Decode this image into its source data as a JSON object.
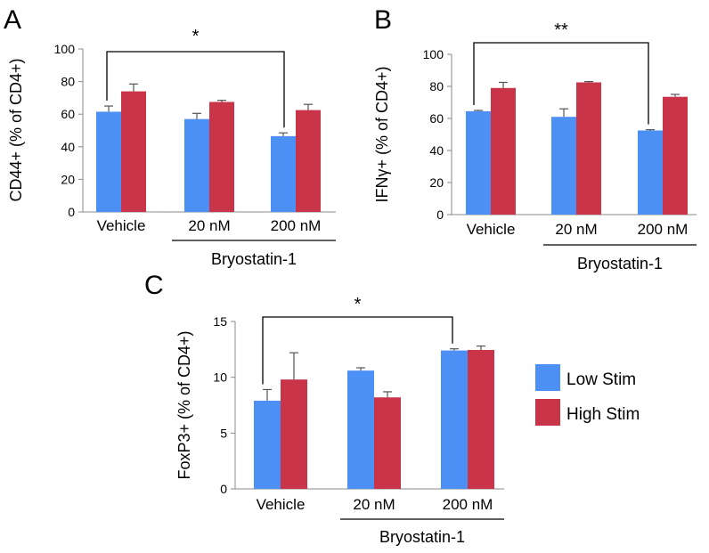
{
  "panels": [
    {
      "letter": "A"
    },
    {
      "letter": "B"
    },
    {
      "letter": "C"
    }
  ],
  "legend": {
    "items": [
      {
        "label": "Low Stim",
        "color": "#4c8ff5"
      },
      {
        "label": "High Stim",
        "color": "#c93448"
      }
    ]
  },
  "chart_data": [
    {
      "type": "bar",
      "panel": "A",
      "title": "",
      "ylabel": "CD44+ (% of CD4+)",
      "xlabel": "Bryostatin-1",
      "group_label": "Bryostatin-1",
      "categories": [
        "Vehicle",
        "20 nM",
        "200 nM"
      ],
      "ylim": [
        0,
        100
      ],
      "yticks": [
        0,
        20,
        40,
        60,
        80,
        100
      ],
      "series": [
        {
          "name": "Low Stim",
          "color": "#4c8ff5",
          "values": [
            61.5,
            57,
            46.5
          ],
          "errors": [
            3.5,
            3.5,
            2
          ]
        },
        {
          "name": "High Stim",
          "color": "#c93448",
          "values": [
            74,
            67.5,
            62.5
          ],
          "errors": [
            4.5,
            1,
            3.5
          ]
        }
      ],
      "significance": {
        "from": 0,
        "to": 2,
        "label": "*"
      }
    },
    {
      "type": "bar",
      "panel": "B",
      "title": "",
      "ylabel": "IFNγ+ (% of CD4+)",
      "xlabel": "Bryostatin-1",
      "group_label": "Bryostatin-1",
      "categories": [
        "Vehicle",
        "20 nM",
        "200 nM"
      ],
      "ylim": [
        0,
        100
      ],
      "yticks": [
        0,
        20,
        40,
        60,
        80,
        100
      ],
      "series": [
        {
          "name": "Low Stim",
          "color": "#4c8ff5",
          "values": [
            64.5,
            61,
            52.5
          ],
          "errors": [
            0.5,
            5,
            0.5
          ]
        },
        {
          "name": "High Stim",
          "color": "#c93448",
          "values": [
            79,
            82.5,
            73.5
          ],
          "errors": [
            3.5,
            0.5,
            1.5
          ]
        }
      ],
      "significance": {
        "from": 0,
        "to": 2,
        "label": "**"
      }
    },
    {
      "type": "bar",
      "panel": "C",
      "title": "",
      "ylabel": "FoxP3+ (% of CD4+)",
      "xlabel": "Bryostatin-1",
      "group_label": "Bryostatin-1",
      "categories": [
        "Vehicle",
        "20 nM",
        "200 nM"
      ],
      "ylim": [
        0,
        15
      ],
      "yticks": [
        0,
        5,
        10,
        15
      ],
      "series": [
        {
          "name": "Low Stim",
          "color": "#4c8ff5",
          "values": [
            7.9,
            10.6,
            12.4
          ],
          "errors": [
            1,
            0.25,
            0.15
          ]
        },
        {
          "name": "High Stim",
          "color": "#c93448",
          "values": [
            9.8,
            8.2,
            12.45
          ],
          "errors": [
            2.4,
            0.5,
            0.35
          ]
        }
      ],
      "significance": {
        "from": 0,
        "to": 2,
        "label": "*"
      }
    }
  ]
}
